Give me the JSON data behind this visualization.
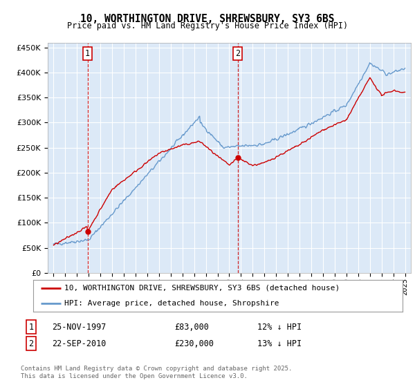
{
  "title1": "10, WORTHINGTON DRIVE, SHREWSBURY, SY3 6BS",
  "title2": "Price paid vs. HM Land Registry's House Price Index (HPI)",
  "legend1": "10, WORTHINGTON DRIVE, SHREWSBURY, SY3 6BS (detached house)",
  "legend2": "HPI: Average price, detached house, Shropshire",
  "footer": "Contains HM Land Registry data © Crown copyright and database right 2025.\nThis data is licensed under the Open Government Licence v3.0.",
  "transaction1_date": 1997.9,
  "transaction1_price": 83000,
  "transaction1_label": "1",
  "transaction1_text": "25-NOV-1997",
  "transaction1_price_text": "£83,000",
  "transaction1_hpi_text": "12% ↓ HPI",
  "transaction2_date": 2010.72,
  "transaction2_price": 230000,
  "transaction2_label": "2",
  "transaction2_text": "22-SEP-2010",
  "transaction2_price_text": "£230,000",
  "transaction2_hpi_text": "13% ↓ HPI",
  "plot_bg_color": "#dce9f7",
  "red_color": "#cc0000",
  "blue_color": "#6699cc",
  "grid_color": "#ffffff",
  "ylim": [
    0,
    460000
  ],
  "xlim": [
    1994.5,
    2025.5
  ]
}
